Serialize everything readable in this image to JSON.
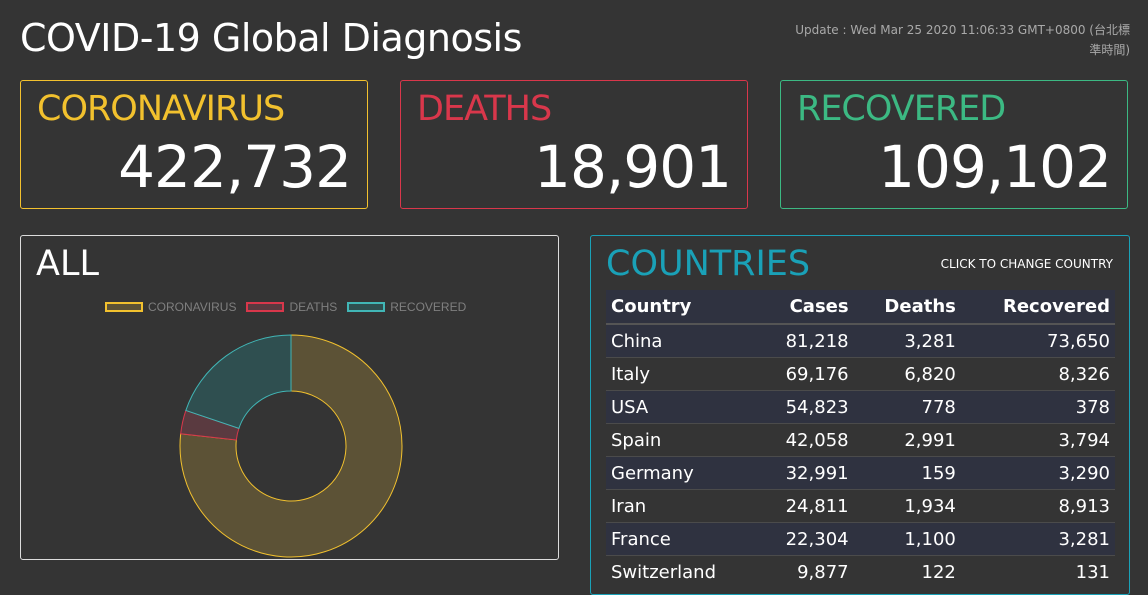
{
  "header": {
    "title": "COVID-19 Global Diagnosis",
    "update": "Update : Wed Mar 25 2020 11:06:33 GMT+0800 (台北標準時間)"
  },
  "stats": {
    "cases": {
      "label": "CORONAVIRUS",
      "value": "422,732"
    },
    "deaths": {
      "label": "DEATHS",
      "value": "18,901"
    },
    "recovered": {
      "label": "RECOVERED",
      "value": "109,102"
    }
  },
  "all_panel": {
    "title": "ALL",
    "legend": [
      "CORONAVIRUS",
      "DEATHS",
      "RECOVERED"
    ]
  },
  "chart_data": {
    "type": "pie",
    "labels": [
      "CORONAVIRUS",
      "DEATHS",
      "RECOVERED"
    ],
    "values": [
      422732,
      18901,
      109102
    ],
    "colors": [
      "#f2c12e",
      "#d9374b",
      "#41b6b6"
    ],
    "legend": "top"
  },
  "countries_panel": {
    "title": "COUNTRIES",
    "hint": "CLICK TO CHANGE COUNTRY",
    "columns": [
      "Country",
      "Cases",
      "Deaths",
      "Recovered"
    ],
    "rows": [
      [
        "China",
        "81,218",
        "3,281",
        "73,650"
      ],
      [
        "Italy",
        "69,176",
        "6,820",
        "8,326"
      ],
      [
        "USA",
        "54,823",
        "778",
        "378"
      ],
      [
        "Spain",
        "42,058",
        "2,991",
        "3,794"
      ],
      [
        "Germany",
        "32,991",
        "159",
        "3,290"
      ],
      [
        "Iran",
        "24,811",
        "1,934",
        "8,913"
      ],
      [
        "France",
        "22,304",
        "1,100",
        "3,281"
      ],
      [
        "Switzerland",
        "9,877",
        "122",
        "131"
      ]
    ]
  }
}
